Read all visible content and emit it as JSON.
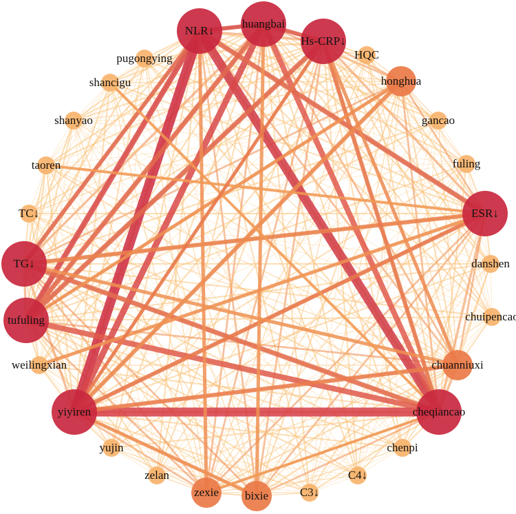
{
  "nodes": [
    {
      "label": "NLR↓"
    },
    {
      "label": "huangbai"
    },
    {
      "label": "Hs-CRP↓"
    },
    {
      "label": "HQC"
    },
    {
      "label": "honghua"
    },
    {
      "label": "gancao"
    },
    {
      "label": "fuling"
    },
    {
      "label": "ESR↓"
    },
    {
      "label": "danshen"
    },
    {
      "label": "chuipencao"
    },
    {
      "label": "chuanniuxi"
    },
    {
      "label": "cheqiancao"
    },
    {
      "label": "chenpi"
    },
    {
      "label": "C4↓"
    },
    {
      "label": "C3↓"
    },
    {
      "label": "bixie"
    },
    {
      "label": "zexie"
    },
    {
      "label": "zelan"
    },
    {
      "label": "yujin"
    },
    {
      "label": "yiyiren"
    },
    {
      "label": "weilingxian"
    },
    {
      "label": "tufuling"
    },
    {
      "label": "TG↓"
    },
    {
      "label": "TC↓"
    },
    {
      "label": "taoren"
    },
    {
      "label": "shanyao"
    },
    {
      "label": "shancigu"
    },
    {
      "label": "pugongying"
    }
  ]
}
